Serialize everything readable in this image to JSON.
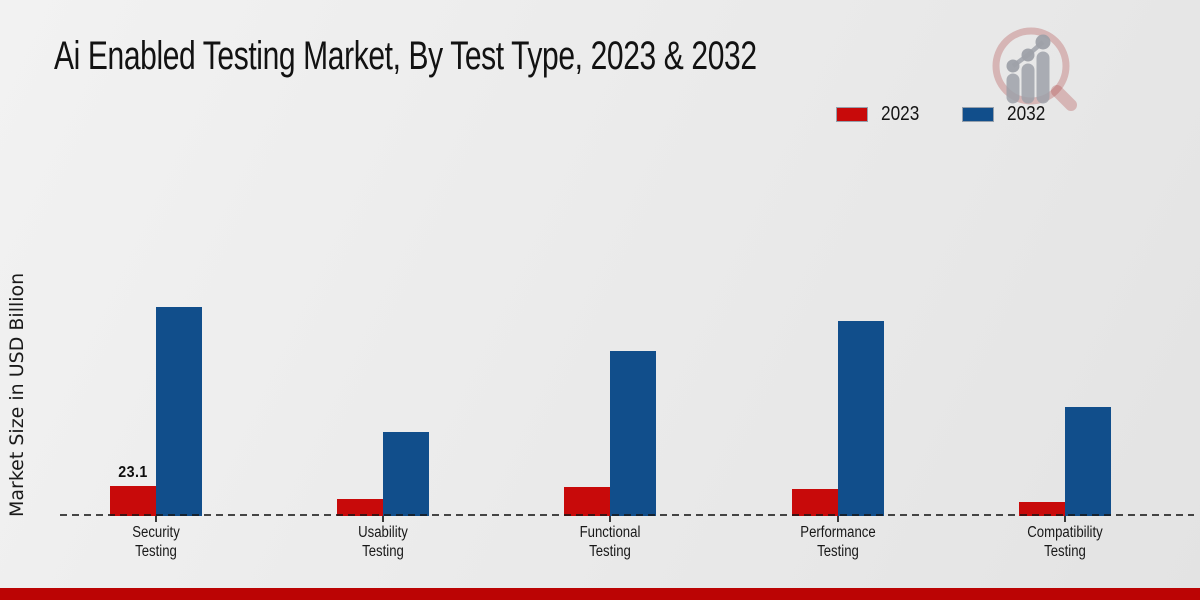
{
  "header": {
    "title": "Ai Enabled Testing Market, By Test Type, 2023 & 2032"
  },
  "watermark": {
    "name": "market-research-future-logo",
    "ring_color": "rgba(178,76,76,0.32)",
    "chart_gray": "rgba(158,161,169,0.85)"
  },
  "footer": {
    "bar_color": "#bb0404"
  },
  "chart_data": {
    "type": "bar",
    "title": "Ai Enabled Testing Market, By Test Type, 2023 & 2032",
    "xlabel": "",
    "ylabel": "Market Size in USD Billion",
    "units": "USD Billion",
    "categories": [
      "Security Testing",
      "Usability Testing",
      "Functional Testing",
      "Performance Testing",
      "Compatibility Testing"
    ],
    "category_label_lines": [
      [
        "Security",
        "Testing"
      ],
      [
        "Usability",
        "Testing"
      ],
      [
        "Functional",
        "Testing"
      ],
      [
        "Performance",
        "Testing"
      ],
      [
        "Compatibility",
        "Testing"
      ]
    ],
    "series": [
      {
        "name": "2023",
        "color": "#c80a0a",
        "values": [
          23.1,
          12.9,
          22.6,
          20.6,
          11.0
        ]
      },
      {
        "name": "2032",
        "color": "#114e8b",
        "values": [
          161,
          65,
          127,
          150,
          84
        ]
      }
    ],
    "annotations": [
      {
        "series_index": 0,
        "category_index": 0,
        "text": "23.1"
      }
    ],
    "legend_position": "top-right",
    "grid": false,
    "baseline_style": "dashed",
    "ylim": [
      0,
      170
    ]
  }
}
